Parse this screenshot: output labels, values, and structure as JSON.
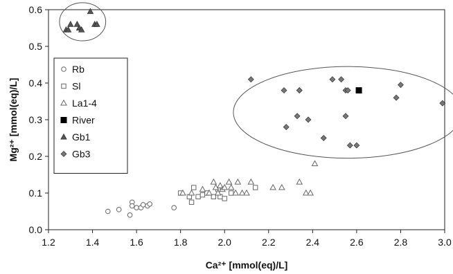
{
  "chart_data": {
    "type": "scatter",
    "xlabel": "Ca²⁺ [mmol(eq)/L]",
    "ylabel": "Mg²⁺ [mmol(eq)/L]",
    "xlim": [
      1.2,
      3.0
    ],
    "ylim": [
      0.0,
      0.6
    ],
    "x_ticks": [
      "1.2",
      "1.4",
      "1.6",
      "1.8",
      "2.0",
      "2.2",
      "2.4",
      "2.6",
      "2.8",
      "3.0"
    ],
    "y_ticks": [
      "0.0",
      "0.1",
      "0.2",
      "0.3",
      "0.4",
      "0.5",
      "0.6"
    ],
    "grid": false,
    "legend_position": "left",
    "series": [
      {
        "name": "Rb",
        "marker": "circle-open",
        "color": "#666666",
        "x": [
          1.47,
          1.52,
          1.57,
          1.58,
          1.58,
          1.6,
          1.62,
          1.63,
          1.65,
          1.66,
          1.77
        ],
        "y": [
          0.05,
          0.055,
          0.04,
          0.075,
          0.065,
          0.06,
          0.06,
          0.068,
          0.065,
          0.07,
          0.06
        ]
      },
      {
        "name": "Sl",
        "marker": "square-open",
        "color": "#666666",
        "x": [
          1.8,
          1.84,
          1.85,
          1.86,
          1.88,
          1.9,
          1.92,
          1.95,
          1.97,
          1.98,
          2.0,
          2.03,
          2.14
        ],
        "y": [
          0.1,
          0.09,
          0.075,
          0.115,
          0.09,
          0.095,
          0.1,
          0.09,
          0.11,
          0.09,
          0.085,
          0.1,
          0.115
        ]
      },
      {
        "name": "La1-4",
        "marker": "triangle-open",
        "color": "#666666",
        "x": [
          1.81,
          1.85,
          1.9,
          1.93,
          1.95,
          1.96,
          1.97,
          1.98,
          1.99,
          2.0,
          2.02,
          2.03,
          2.05,
          2.06,
          2.08,
          2.1,
          2.12,
          2.22,
          2.26,
          2.34,
          2.37,
          2.39,
          2.41
        ],
        "y": [
          0.1,
          0.1,
          0.11,
          0.1,
          0.13,
          0.115,
          0.1,
          0.12,
          0.11,
          0.115,
          0.13,
          0.115,
          0.1,
          0.13,
          0.1,
          0.1,
          0.13,
          0.115,
          0.115,
          0.13,
          0.1,
          0.1,
          0.18
        ]
      },
      {
        "name": "River",
        "marker": "square-filled",
        "color": "#000000",
        "x": [
          2.61
        ],
        "y": [
          0.38
        ]
      },
      {
        "name": "Gb1",
        "marker": "triangle-filled",
        "color": "#555555",
        "x": [
          1.28,
          1.29,
          1.3,
          1.33,
          1.34,
          1.35,
          1.39,
          1.41,
          1.42
        ],
        "y": [
          0.545,
          0.545,
          0.56,
          0.56,
          0.55,
          0.545,
          0.595,
          0.56,
          0.56
        ]
      },
      {
        "name": "Gb3",
        "marker": "diamond-filled",
        "color": "#777777",
        "x": [
          2.12,
          2.27,
          2.28,
          2.33,
          2.34,
          2.34,
          2.38,
          2.45,
          2.49,
          2.53,
          2.55,
          2.55,
          2.56,
          2.57,
          2.6,
          2.78,
          2.8,
          2.99
        ],
        "y": [
          0.41,
          0.38,
          0.28,
          0.31,
          0.38,
          0.38,
          0.3,
          0.25,
          0.41,
          0.41,
          0.38,
          0.31,
          0.38,
          0.23,
          0.23,
          0.36,
          0.395,
          0.345
        ]
      }
    ],
    "annotations": [
      {
        "type": "ellipse",
        "around": "Gb1",
        "cx": 1.355,
        "cy": 0.567,
        "rx": 0.105,
        "ry": 0.052
      },
      {
        "type": "ellipse",
        "around": "Gb3",
        "cx": 2.56,
        "cy": 0.32,
        "rx": 0.52,
        "ry": 0.125
      }
    ]
  }
}
